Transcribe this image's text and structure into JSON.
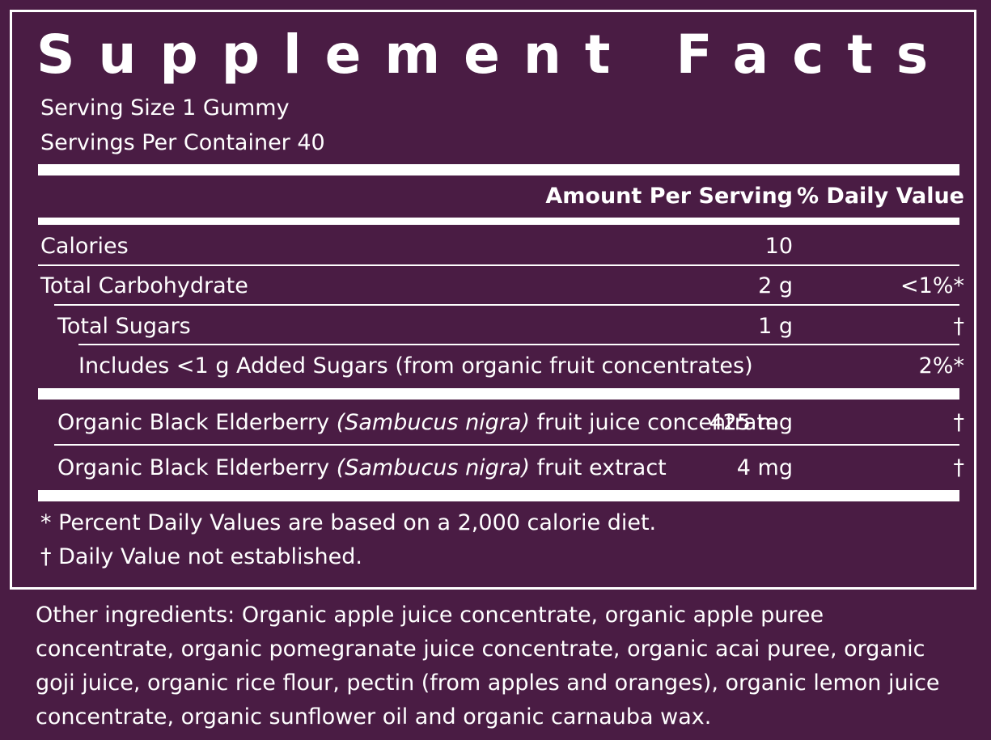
{
  "title": "Supplement Facts",
  "serving": {
    "size": "Serving Size 1 Gummy",
    "per_container": "Servings Per Container 40"
  },
  "header": {
    "amount": "Amount Per Serving",
    "daily_value": "% Daily Value"
  },
  "nutrients": [
    {
      "name": "Calories",
      "amount": "10",
      "dv": ""
    },
    {
      "name": "Total Carbohydrate",
      "amount": "2 g",
      "dv": "<1%*"
    },
    {
      "name": "Total Sugars",
      "amount": "1 g",
      "dv": "†"
    },
    {
      "name": "Includes <1 g Added Sugars (from organic fruit concentrates)",
      "amount": "",
      "dv": "2%*"
    }
  ],
  "ingredients": [
    {
      "prefix": "Organic Black Elderberry ",
      "latin": "(Sambucus nigra)",
      "suffix": " fruit juice concentrate",
      "amount": "425 mg",
      "dv": "†"
    },
    {
      "prefix": "Organic Black Elderberry ",
      "latin": "(Sambucus nigra)",
      "suffix": " fruit extract",
      "amount": "4 mg",
      "dv": "†"
    }
  ],
  "footnotes": {
    "percent": "* Percent Daily Values are based on a 2,000 calorie diet.",
    "dagger": "† Daily Value not established."
  },
  "other_ingredients": "Other ingredients: Organic apple juice concentrate, organic apple puree concentrate, organic pomegranate juice concentrate, organic acai puree, organic goji juice, organic rice flour, pectin (from apples and oranges), organic lemon juice concentrate, organic sunflower oil and organic carnauba wax.",
  "colors": {
    "background": "#4a1c44",
    "text": "#ffffff"
  }
}
